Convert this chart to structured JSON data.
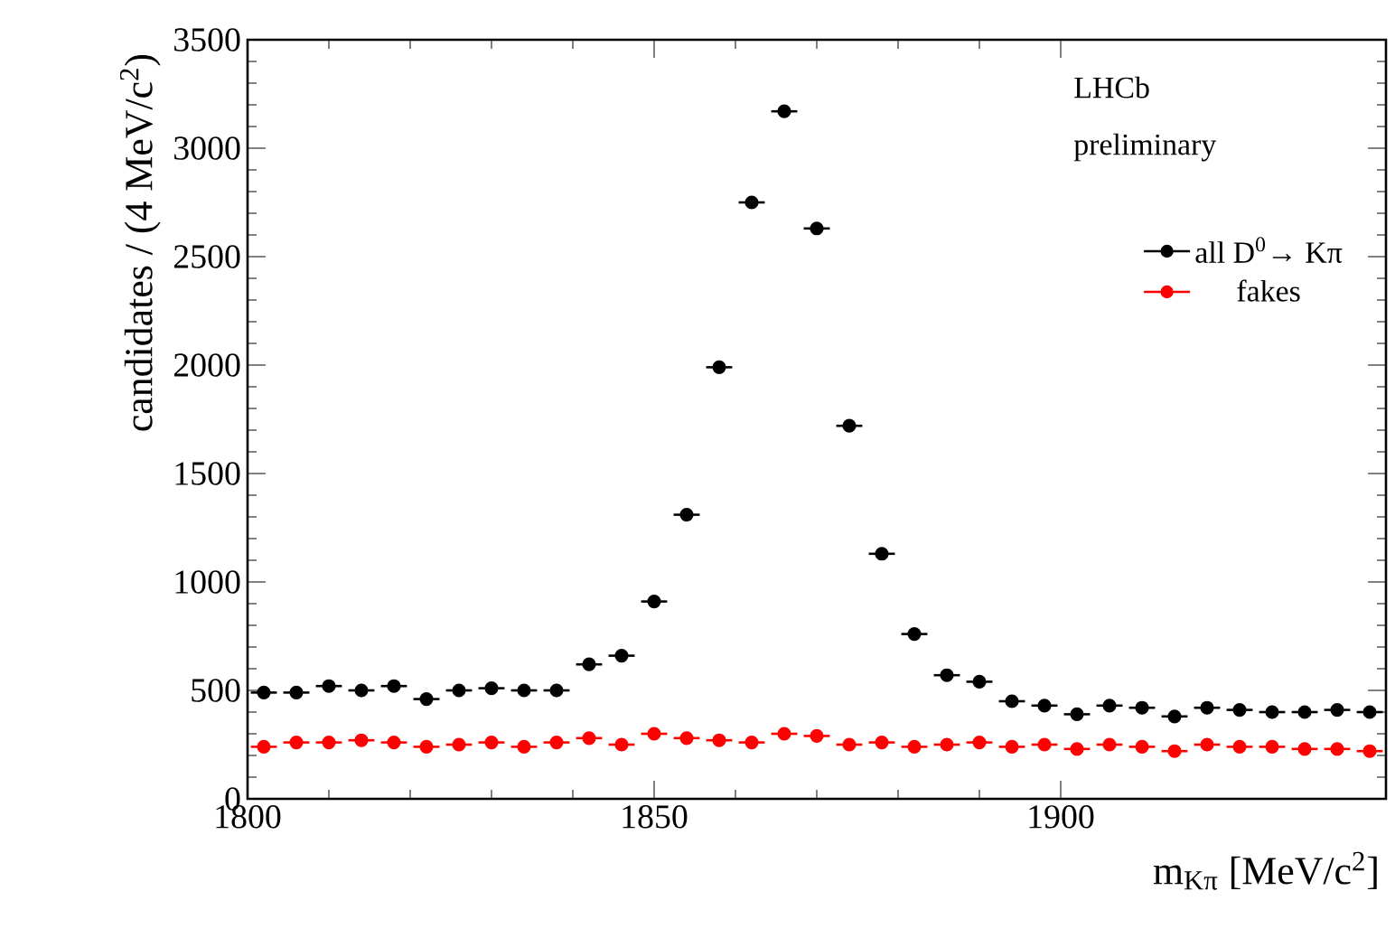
{
  "chart_data": {
    "type": "scatter",
    "xlabel": "m$_{Kπ}$ [MeV/c$^{2}$]",
    "ylabel": "candidates / (4 MeV/c$^{2}$)",
    "annotations": [
      "LHCb",
      "preliminary"
    ],
    "x": [
      1802,
      1806,
      1810,
      1814,
      1818,
      1822,
      1826,
      1830,
      1834,
      1838,
      1842,
      1846,
      1850,
      1854,
      1858,
      1862,
      1866,
      1870,
      1874,
      1878,
      1882,
      1886,
      1890,
      1894,
      1898,
      1902,
      1906,
      1910,
      1914,
      1918,
      1922,
      1926,
      1930,
      1934,
      1938
    ],
    "xlim": [
      1800,
      1940
    ],
    "xticks": [
      1800,
      1850,
      1900
    ],
    "ylim": [
      0,
      3500
    ],
    "yticks": [
      0,
      500,
      1000,
      1500,
      2000,
      2500,
      3000,
      3500
    ],
    "marker": "circle",
    "legend": "top right",
    "series": [
      {
        "name": "all D$^{0}$→ Kπ",
        "color": "#000000",
        "values": [
          490,
          490,
          520,
          500,
          520,
          460,
          500,
          510,
          500,
          500,
          620,
          660,
          910,
          1310,
          1990,
          2750,
          3170,
          2630,
          1720,
          1130,
          760,
          570,
          540,
          450,
          430,
          390,
          430,
          420,
          380,
          420,
          410,
          400,
          400,
          410,
          400
        ],
        "xerrors": [
          1.6,
          1.6,
          1.6,
          1.6,
          1.6,
          1.6,
          1.6,
          1.6,
          1.6,
          1.6,
          1.6,
          1.6,
          1.6,
          1.6,
          1.6,
          1.6,
          1.6,
          1.6,
          1.6,
          1.6,
          1.6,
          1.6,
          1.6,
          1.6,
          1.6,
          1.6,
          1.6,
          1.6,
          1.6,
          1.6,
          1.6,
          1.6,
          1.6,
          1.6,
          1.6
        ]
      },
      {
        "name": "fakes",
        "color": "#ff0000",
        "values": [
          240,
          260,
          260,
          270,
          260,
          240,
          250,
          260,
          240,
          260,
          280,
          250,
          300,
          280,
          270,
          260,
          300,
          290,
          250,
          260,
          240,
          250,
          260,
          240,
          250,
          230,
          250,
          240,
          220,
          250,
          240,
          240,
          230,
          230,
          220
        ],
        "xerrors": [
          1.6,
          1.6,
          1.6,
          1.6,
          1.6,
          1.6,
          1.6,
          1.6,
          1.6,
          1.6,
          1.6,
          1.6,
          1.6,
          1.6,
          1.6,
          1.6,
          1.6,
          1.6,
          1.6,
          1.6,
          1.6,
          1.6,
          1.6,
          1.6,
          1.6,
          1.6,
          1.6,
          1.6,
          1.6,
          1.6,
          1.6,
          1.6,
          1.6,
          1.6,
          1.6
        ]
      }
    ]
  }
}
